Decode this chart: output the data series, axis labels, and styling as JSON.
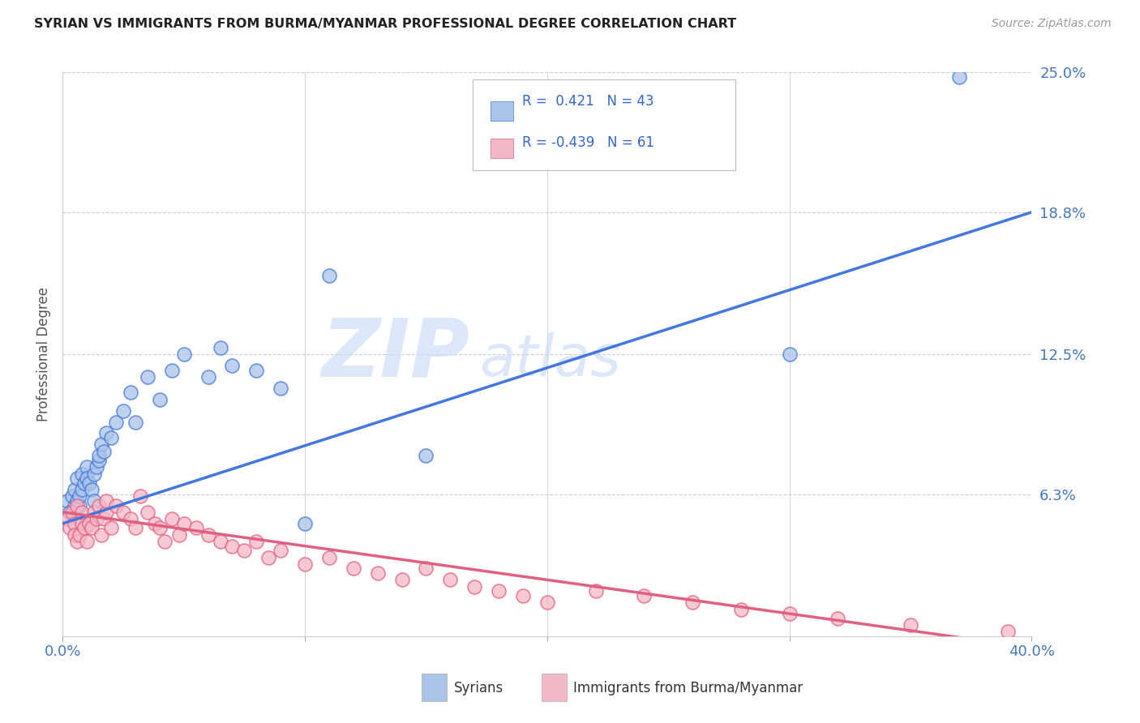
{
  "title": "SYRIAN VS IMMIGRANTS FROM BURMA/MYANMAR PROFESSIONAL DEGREE CORRELATION CHART",
  "source": "Source: ZipAtlas.com",
  "ylabel": "Professional Degree",
  "xlim": [
    0.0,
    0.4
  ],
  "ylim": [
    0.0,
    0.25
  ],
  "xtick_vals": [
    0.0,
    0.1,
    0.2,
    0.3,
    0.4
  ],
  "xticklabels": [
    "0.0%",
    "",
    "",
    "",
    "40.0%"
  ],
  "ytick_vals": [
    0.0,
    0.063,
    0.125,
    0.188,
    0.25
  ],
  "ytick_labels": [
    "",
    "6.3%",
    "12.5%",
    "18.8%",
    "25.0%"
  ],
  "grid_color": "#cccccc",
  "background_color": "#ffffff",
  "watermark_zip": "ZIP",
  "watermark_atlas": "atlas",
  "legend_R_syrian": "0.421",
  "legend_N_syrian": "43",
  "legend_R_burma": "-0.439",
  "legend_N_burma": "61",
  "syrian_color": "#aac4e8",
  "burma_color": "#f5b8c8",
  "trendline_syrian_color": "#4477dd",
  "trendline_burma_color": "#e06080",
  "syrian_trend_x": [
    0.0,
    0.4
  ],
  "syrian_trend_y": [
    0.05,
    0.188
  ],
  "burma_trend_x": [
    0.0,
    0.4
  ],
  "burma_trend_y": [
    0.055,
    -0.005
  ],
  "syrians_x": [
    0.002,
    0.003,
    0.004,
    0.005,
    0.005,
    0.006,
    0.006,
    0.007,
    0.007,
    0.008,
    0.008,
    0.009,
    0.01,
    0.01,
    0.011,
    0.012,
    0.013,
    0.013,
    0.014,
    0.015,
    0.015,
    0.016,
    0.017,
    0.018,
    0.02,
    0.022,
    0.025,
    0.028,
    0.03,
    0.035,
    0.04,
    0.045,
    0.05,
    0.06,
    0.065,
    0.07,
    0.08,
    0.09,
    0.1,
    0.11,
    0.15,
    0.3,
    0.37
  ],
  "syrians_y": [
    0.06,
    0.055,
    0.062,
    0.058,
    0.065,
    0.06,
    0.07,
    0.058,
    0.062,
    0.065,
    0.072,
    0.068,
    0.075,
    0.07,
    0.068,
    0.065,
    0.06,
    0.072,
    0.075,
    0.078,
    0.08,
    0.085,
    0.082,
    0.09,
    0.088,
    0.095,
    0.1,
    0.108,
    0.095,
    0.115,
    0.105,
    0.118,
    0.125,
    0.115,
    0.128,
    0.12,
    0.118,
    0.11,
    0.05,
    0.16,
    0.08,
    0.125,
    0.248
  ],
  "burma_x": [
    0.002,
    0.003,
    0.004,
    0.005,
    0.005,
    0.006,
    0.006,
    0.007,
    0.008,
    0.008,
    0.009,
    0.01,
    0.011,
    0.012,
    0.013,
    0.014,
    0.015,
    0.016,
    0.017,
    0.018,
    0.018,
    0.02,
    0.022,
    0.025,
    0.028,
    0.03,
    0.032,
    0.035,
    0.038,
    0.04,
    0.042,
    0.045,
    0.048,
    0.05,
    0.055,
    0.06,
    0.065,
    0.07,
    0.075,
    0.08,
    0.085,
    0.09,
    0.1,
    0.11,
    0.12,
    0.13,
    0.14,
    0.15,
    0.16,
    0.17,
    0.18,
    0.19,
    0.2,
    0.22,
    0.24,
    0.26,
    0.28,
    0.3,
    0.32,
    0.35,
    0.39
  ],
  "burma_y": [
    0.052,
    0.048,
    0.055,
    0.05,
    0.045,
    0.042,
    0.058,
    0.045,
    0.05,
    0.055,
    0.048,
    0.042,
    0.05,
    0.048,
    0.055,
    0.052,
    0.058,
    0.045,
    0.052,
    0.055,
    0.06,
    0.048,
    0.058,
    0.055,
    0.052,
    0.048,
    0.062,
    0.055,
    0.05,
    0.048,
    0.042,
    0.052,
    0.045,
    0.05,
    0.048,
    0.045,
    0.042,
    0.04,
    0.038,
    0.042,
    0.035,
    0.038,
    0.032,
    0.035,
    0.03,
    0.028,
    0.025,
    0.03,
    0.025,
    0.022,
    0.02,
    0.018,
    0.015,
    0.02,
    0.018,
    0.015,
    0.012,
    0.01,
    0.008,
    0.005,
    0.002
  ]
}
